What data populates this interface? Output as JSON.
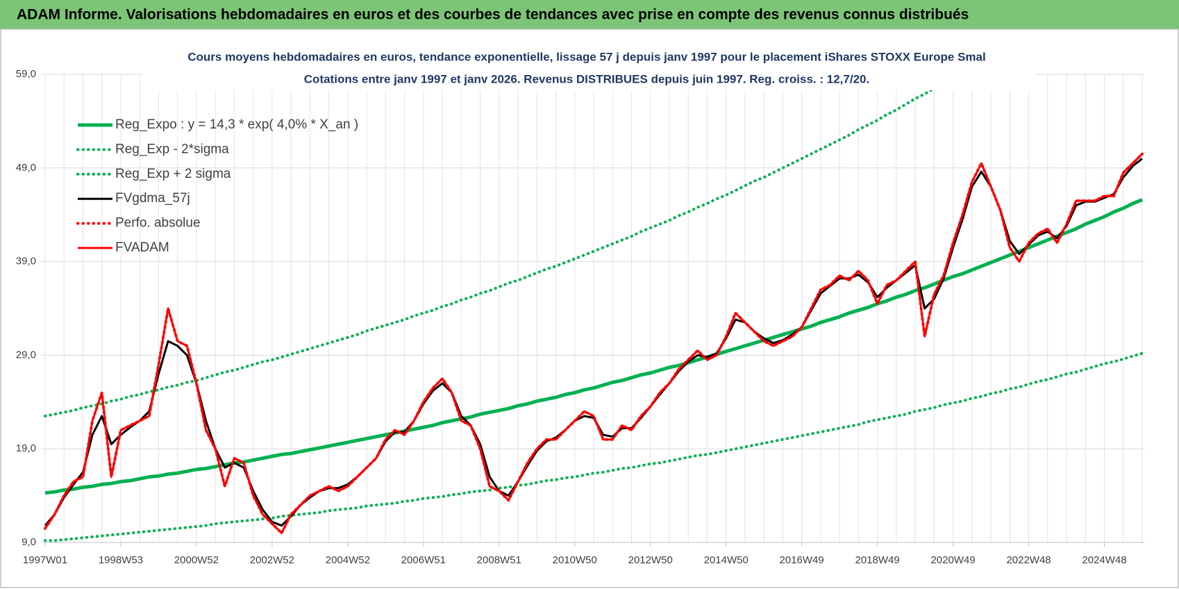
{
  "header": {
    "title": "ADAM Informe. Valorisations hebdomadaires en euros et des courbes de tendances avec prise en compte des revenus connus distribués"
  },
  "chart_data": {
    "type": "line",
    "title": "Cours moyens hebdomadaires en euros, tendance exponentielle, lissage 57 j depuis janv 1997  pour le placement iShares STOXX Europe Smal",
    "subtitle": "Cotations entre janv 1997 et janv 2026. Revenus DISTRIBUES depuis juin 1997. Reg. croiss. : 12,7/20.",
    "categories": [
      "1997W01",
      null,
      null,
      null,
      null,
      null,
      null,
      null,
      "1998W53",
      null,
      null,
      null,
      null,
      null,
      null,
      null,
      "2000W52",
      null,
      null,
      null,
      null,
      null,
      null,
      null,
      "2002W52",
      null,
      null,
      null,
      null,
      null,
      null,
      null,
      "2004W52",
      null,
      null,
      null,
      null,
      null,
      null,
      null,
      "2006W51",
      null,
      null,
      null,
      null,
      null,
      null,
      null,
      "2008W51",
      null,
      null,
      null,
      null,
      null,
      null,
      null,
      "2010W50",
      null,
      null,
      null,
      null,
      null,
      null,
      null,
      "2012W50",
      null,
      null,
      null,
      null,
      null,
      null,
      null,
      "2014W50",
      null,
      null,
      null,
      null,
      null,
      null,
      null,
      "2016W49",
      null,
      null,
      null,
      null,
      null,
      null,
      null,
      "2018W49",
      null,
      null,
      null,
      null,
      null,
      null,
      null,
      "2020W49",
      null,
      null,
      null,
      null,
      null,
      null,
      null,
      "2022W48",
      null,
      null,
      null,
      null,
      null,
      null,
      null,
      "2024W48",
      null,
      null,
      null,
      null
    ],
    "ylim": [
      9,
      59
    ],
    "yticks": [
      {
        "value": 9,
        "label": "9,0"
      },
      {
        "value": 19,
        "label": "19,0"
      },
      {
        "value": 29,
        "label": "29,0"
      },
      {
        "value": 39,
        "label": "39,0"
      },
      {
        "value": 49,
        "label": "49,0"
      },
      {
        "value": 59,
        "label": "59,0"
      }
    ],
    "grid": true,
    "legend": "upper left",
    "series": [
      {
        "name": "Reg_Expo : y = 14,3 * exp( 4,0% *  X_an )",
        "color": "#00b050",
        "line_style": "solid",
        "values": [
          14.3,
          14.4,
          14.6,
          14.7,
          14.9,
          15.0,
          15.2,
          15.3,
          15.5,
          15.6,
          15.8,
          16.0,
          16.1,
          16.3,
          16.4,
          16.6,
          16.8,
          16.9,
          17.1,
          17.3,
          17.5,
          17.6,
          17.8,
          18.0,
          18.2,
          18.4,
          18.5,
          18.7,
          18.9,
          19.1,
          19.3,
          19.5,
          19.7,
          19.9,
          20.1,
          20.3,
          20.5,
          20.7,
          20.9,
          21.1,
          21.3,
          21.5,
          21.8,
          22.0,
          22.2,
          22.4,
          22.7,
          22.9,
          23.1,
          23.3,
          23.6,
          23.8,
          24.1,
          24.3,
          24.5,
          24.8,
          25.0,
          25.3,
          25.5,
          25.8,
          26.1,
          26.3,
          26.6,
          26.9,
          27.1,
          27.4,
          27.7,
          27.9,
          28.2,
          28.5,
          28.8,
          29.1,
          29.4,
          29.7,
          30.0,
          30.3,
          30.6,
          30.9,
          31.2,
          31.5,
          31.8,
          32.1,
          32.5,
          32.8,
          33.1,
          33.5,
          33.8,
          34.1,
          34.5,
          34.8,
          35.2,
          35.5,
          35.9,
          36.2,
          36.6,
          37.0,
          37.4,
          37.7,
          38.1,
          38.5,
          38.9,
          39.3,
          39.7,
          40.1,
          40.5,
          40.9,
          41.3,
          41.7,
          42.1,
          42.5,
          43.0,
          43.4,
          43.8,
          44.3,
          44.7,
          45.2,
          45.6
        ]
      },
      {
        "name": "Reg_Exp - 2*sigma",
        "color": "#00b050",
        "line_style": "dotted",
        "values": [
          9.2,
          9.2,
          9.3,
          9.4,
          9.5,
          9.6,
          9.7,
          9.8,
          9.9,
          10.0,
          10.1,
          10.2,
          10.3,
          10.4,
          10.5,
          10.6,
          10.7,
          10.8,
          11.0,
          11.1,
          11.2,
          11.3,
          11.4,
          11.5,
          11.6,
          11.8,
          11.9,
          12.0,
          12.1,
          12.2,
          12.4,
          12.5,
          12.6,
          12.7,
          12.9,
          13.0,
          13.1,
          13.2,
          13.4,
          13.5,
          13.7,
          13.8,
          13.9,
          14.1,
          14.2,
          14.4,
          14.5,
          14.6,
          14.8,
          14.9,
          15.1,
          15.2,
          15.4,
          15.6,
          15.7,
          15.9,
          16.0,
          16.2,
          16.4,
          16.5,
          16.7,
          16.9,
          17.0,
          17.2,
          17.4,
          17.5,
          17.7,
          17.9,
          18.1,
          18.3,
          18.4,
          18.6,
          18.8,
          19.0,
          19.2,
          19.4,
          19.6,
          19.8,
          20.0,
          20.2,
          20.4,
          20.6,
          20.8,
          21.0,
          21.2,
          21.4,
          21.6,
          21.9,
          22.1,
          22.3,
          22.5,
          22.7,
          23.0,
          23.2,
          23.4,
          23.7,
          23.9,
          24.1,
          24.4,
          24.6,
          24.9,
          25.1,
          25.4,
          25.6,
          25.9,
          26.2,
          26.4,
          26.7,
          27.0,
          27.2,
          27.5,
          27.8,
          28.1,
          28.3,
          28.6,
          28.9,
          29.2
        ]
      },
      {
        "name": "Reg_Exp + 2 sigma",
        "color": "#00b050",
        "line_style": "dotted",
        "values": [
          22.5,
          22.7,
          22.9,
          23.1,
          23.4,
          23.6,
          23.8,
          24.1,
          24.3,
          24.6,
          24.8,
          25.1,
          25.3,
          25.6,
          25.8,
          26.1,
          26.3,
          26.6,
          26.9,
          27.2,
          27.4,
          27.7,
          28.0,
          28.3,
          28.5,
          28.8,
          29.1,
          29.4,
          29.7,
          30.0,
          30.3,
          30.6,
          30.9,
          31.2,
          31.6,
          31.9,
          32.2,
          32.5,
          32.8,
          33.2,
          33.5,
          33.8,
          34.2,
          34.5,
          34.9,
          35.2,
          35.6,
          35.9,
          36.3,
          36.7,
          37.0,
          37.4,
          37.8,
          38.2,
          38.5,
          38.9,
          39.3,
          39.7,
          40.1,
          40.5,
          40.9,
          41.3,
          41.7,
          42.2,
          42.6,
          43.0,
          43.4,
          43.9,
          44.3,
          44.8,
          45.2,
          45.7,
          46.1,
          46.6,
          47.1,
          47.6,
          48.0,
          48.5,
          49.0,
          49.5,
          50.0,
          50.5,
          51.0,
          51.5,
          52.0,
          52.5,
          53.1,
          53.6,
          54.1,
          54.7,
          55.2,
          55.8,
          56.4,
          56.9,
          57.5,
          58.1,
          58.6,
          null,
          null,
          null,
          null,
          null,
          null,
          null,
          null,
          null,
          null,
          null,
          null,
          null,
          null,
          null,
          null,
          null,
          null,
          null,
          null
        ]
      },
      {
        "name": "FVgdma_57j",
        "color": "#000000",
        "line_style": "solid",
        "values": [
          10.8,
          12,
          13.8,
          15.2,
          16.5,
          20.5,
          22.5,
          19.5,
          20.5,
          21.3,
          22,
          23,
          27,
          30.5,
          30,
          29,
          26,
          22,
          19,
          17,
          17.5,
          17,
          14.5,
          12.5,
          11.2,
          10.8,
          11.8,
          13,
          13.8,
          14.5,
          14.8,
          14.8,
          15.2,
          16,
          17,
          18,
          19.8,
          20.8,
          20.8,
          22,
          23.8,
          25.2,
          26,
          25,
          22.5,
          21.5,
          19.5,
          16,
          14.5,
          14,
          15.5,
          17.2,
          18.8,
          19.8,
          20.2,
          21,
          22,
          22.5,
          22.3,
          20.5,
          20.3,
          21.2,
          21.2,
          22.3,
          23.5,
          24.8,
          26,
          27.3,
          28.3,
          29,
          28.8,
          29.2,
          30.8,
          32.8,
          32.5,
          31.5,
          30.8,
          30.3,
          30.6,
          31.2,
          32,
          33.8,
          35.6,
          36.4,
          37.2,
          37.2,
          37.6,
          36.8,
          35.2,
          36.2,
          37,
          37.8,
          38.6,
          34,
          35,
          37.2,
          40.5,
          43.5,
          47,
          48.6,
          47,
          44.5,
          41.2,
          39.8,
          40.8,
          41.8,
          42.2,
          41.5,
          42.8,
          45,
          45.4,
          45.4,
          45.8,
          46.2,
          48,
          49.2,
          50
        ]
      },
      {
        "name": "Perfo. absolue",
        "color": "#ff0000",
        "line_style": "dotted",
        "values": [
          10.5,
          12,
          14,
          15.5,
          16,
          22,
          25,
          16,
          21,
          21.5,
          22,
          22.5,
          28,
          34,
          30.5,
          30,
          26,
          21,
          19,
          15,
          18,
          17.5,
          14,
          12,
          11,
          10,
          12,
          13,
          14,
          14.5,
          15,
          14.5,
          15,
          16,
          17,
          18,
          20,
          21,
          20.5,
          22,
          24,
          25.5,
          26.5,
          25,
          22,
          21.5,
          19,
          15,
          14.5,
          13.5,
          15.5,
          17.5,
          19,
          20,
          20,
          21,
          22,
          23,
          22.5,
          20,
          20,
          21.5,
          21,
          22.5,
          23.5,
          25,
          26,
          27.5,
          28.5,
          29.5,
          28.5,
          29,
          31,
          33.5,
          32.5,
          31.5,
          30.5,
          30,
          30.5,
          31,
          32,
          34,
          36,
          36.5,
          37.5,
          37,
          38,
          37,
          34.5,
          36.5,
          37,
          38,
          39,
          31,
          35.5,
          37.5,
          41,
          44,
          47.5,
          49.5,
          47,
          44.5,
          40.5,
          39,
          41,
          42,
          42.5,
          41,
          43,
          45.5,
          45.5,
          45.5,
          46,
          46,
          48.5,
          49.5,
          50.5
        ]
      },
      {
        "name": "FVADAM",
        "color": "#ff0000",
        "line_style": "solid",
        "values": [
          10.5,
          12,
          14,
          15.5,
          16,
          22,
          25,
          16,
          21,
          21.5,
          22,
          22.5,
          28,
          34,
          30.5,
          30,
          26,
          21,
          19,
          15,
          18,
          17.5,
          14,
          12,
          11,
          10,
          12,
          13,
          14,
          14.5,
          15,
          14.5,
          15,
          16,
          17,
          18,
          20,
          21,
          20.5,
          22,
          24,
          25.5,
          26.5,
          25,
          22,
          21.5,
          19,
          15,
          14.5,
          13.5,
          15.5,
          17.5,
          19,
          20,
          20,
          21,
          22,
          23,
          22.5,
          20,
          20,
          21.5,
          21,
          22.5,
          23.5,
          25,
          26,
          27.5,
          28.5,
          29.5,
          28.5,
          29,
          31,
          33.5,
          32.5,
          31.5,
          30.5,
          30,
          30.5,
          31,
          32,
          34,
          36,
          36.5,
          37.5,
          37,
          38,
          37,
          34.5,
          36.5,
          37,
          38,
          39,
          31,
          35.5,
          37.5,
          41,
          44,
          47.5,
          49.5,
          47,
          44.5,
          40.5,
          39,
          41,
          42,
          42.5,
          41,
          43,
          45.5,
          45.5,
          45.5,
          46,
          46,
          48.5,
          49.5,
          50.5
        ]
      }
    ]
  }
}
